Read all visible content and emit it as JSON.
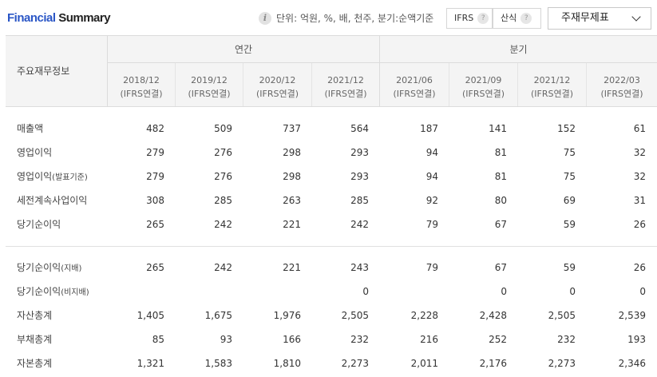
{
  "header": {
    "title_part1": "Financial",
    "title_part2": " Summary",
    "info_icon": "i",
    "unit_text": "단위: 억원, %, 배, 천주, 분기:순액기준",
    "ifrs_label": "IFRS",
    "calc_label": "산식",
    "help_glyph": "?",
    "statement_select": "주재무제표"
  },
  "table": {
    "row_header": "주요재무정보",
    "groups": {
      "annual": "연간",
      "quarter": "분기"
    },
    "periods": [
      {
        "date": "2018/12",
        "basis": "(IFRS연결)"
      },
      {
        "date": "2019/12",
        "basis": "(IFRS연결)"
      },
      {
        "date": "2020/12",
        "basis": "(IFRS연결)"
      },
      {
        "date": "2021/12",
        "basis": "(IFRS연결)"
      },
      {
        "date": "2021/06",
        "basis": "(IFRS연결)"
      },
      {
        "date": "2021/09",
        "basis": "(IFRS연결)"
      },
      {
        "date": "2021/12",
        "basis": "(IFRS연결)"
      },
      {
        "date": "2022/03",
        "basis": "(IFRS연결)"
      }
    ],
    "rows": [
      {
        "label": "매출액",
        "sub": "",
        "values": [
          "482",
          "509",
          "737",
          "564",
          "187",
          "141",
          "152",
          "61"
        ]
      },
      {
        "label": "영업이익",
        "sub": "",
        "values": [
          "279",
          "276",
          "298",
          "293",
          "94",
          "81",
          "75",
          "32"
        ]
      },
      {
        "label": "영업이익",
        "sub": "(발표기준)",
        "values": [
          "279",
          "276",
          "298",
          "293",
          "94",
          "81",
          "75",
          "32"
        ]
      },
      {
        "label": "세전계속사업이익",
        "sub": "",
        "values": [
          "308",
          "285",
          "263",
          "285",
          "92",
          "80",
          "69",
          "31"
        ]
      },
      {
        "label": "당기순이익",
        "sub": "",
        "values": [
          "265",
          "242",
          "221",
          "242",
          "79",
          "67",
          "59",
          "26"
        ]
      },
      {
        "label": "당기순이익",
        "sub": "(지배)",
        "values": [
          "265",
          "242",
          "221",
          "243",
          "79",
          "67",
          "59",
          "26"
        ]
      },
      {
        "label": "당기순이익",
        "sub": "(비지배)",
        "values": [
          "",
          "",
          "",
          "0",
          "",
          "0",
          "0",
          "0"
        ]
      },
      {
        "label": "자산총계",
        "sub": "",
        "values": [
          "1,405",
          "1,675",
          "1,976",
          "2,505",
          "2,228",
          "2,428",
          "2,505",
          "2,539"
        ]
      },
      {
        "label": "부채총계",
        "sub": "",
        "values": [
          "85",
          "93",
          "166",
          "232",
          "216",
          "252",
          "232",
          "193"
        ]
      },
      {
        "label": "자본총계",
        "sub": "",
        "values": [
          "1,321",
          "1,583",
          "1,810",
          "2,273",
          "2,011",
          "2,176",
          "2,273",
          "2,346"
        ]
      }
    ]
  }
}
